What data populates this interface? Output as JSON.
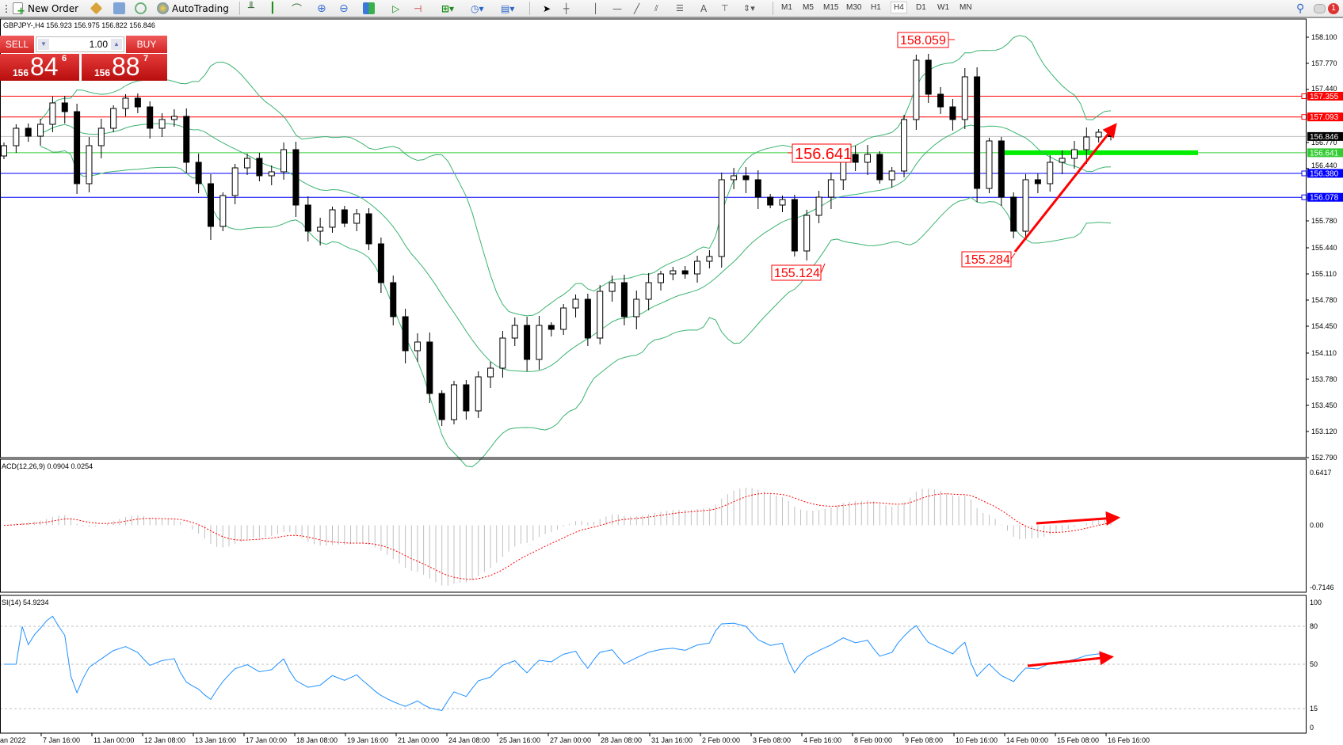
{
  "toolbar": {
    "new_order": "New Order",
    "autotrading": "AutoTrading",
    "icons": [
      "new-order-icon",
      "market-watch-icon",
      "navigator-icon",
      "signals-icon",
      "autotrading-icon",
      "bar-chart-icon",
      "candlestick-icon",
      "line-chart-icon",
      "zoom-in-icon",
      "zoom-out-icon",
      "tile-windows-icon",
      "auto-scroll-icon",
      "chart-shift-icon",
      "indicators-icon",
      "periods-icon",
      "templates-icon",
      "cursor-icon",
      "crosshair-icon",
      "vertical-line-icon",
      "horizontal-line-icon",
      "trendline-icon",
      "equidistant-channel-icon",
      "fibonacci-icon",
      "text-icon",
      "text-label-icon",
      "arrows-icon",
      "search-icon",
      "notifications-icon"
    ],
    "timeframes": [
      "M1",
      "M5",
      "M15",
      "M30",
      "H1",
      "H4",
      "D1",
      "W1",
      "MN"
    ],
    "active_timeframe": "H4",
    "notification_count": "1"
  },
  "chart": {
    "header": "GBPJPY-,H4  156.923 156.975 156.822 156.846"
  },
  "trade_panel": {
    "sell": "SELL",
    "buy": "BUY",
    "lot": "1.00",
    "sell_price": {
      "big": "156",
      "main": "84",
      "sup": "6"
    },
    "buy_price": {
      "big": "156",
      "main": "88",
      "sup": "7"
    }
  },
  "chart_data": {
    "type": "candlestick",
    "symbol": "GBPJPY-",
    "timeframe": "H4",
    "ohlc_last": [
      156.923,
      156.975,
      156.822,
      156.846
    ],
    "close": [
      156.73,
      156.95,
      156.85,
      157.0,
      157.27,
      157.16,
      156.25,
      156.73,
      156.95,
      157.2,
      157.33,
      157.22,
      156.95,
      157.06,
      157.1,
      156.52,
      156.25,
      155.71,
      156.1,
      156.45,
      156.57,
      156.35,
      156.4,
      156.68,
      155.98,
      155.65,
      155.7,
      155.92,
      155.75,
      155.87,
      155.49,
      155.0,
      154.57,
      154.14,
      154.25,
      153.6,
      153.27,
      153.71,
      153.38,
      153.81,
      153.92,
      154.3,
      154.46,
      154.03,
      154.46,
      154.41,
      154.68,
      154.79,
      154.3,
      154.89,
      155.0,
      154.57,
      154.79,
      155.0,
      155.11,
      155.15,
      155.11,
      155.27,
      155.33,
      156.3,
      156.35,
      156.3,
      156.08,
      155.98,
      156.05,
      155.4,
      155.85,
      156.08,
      156.3,
      156.62,
      156.52,
      156.62,
      156.3,
      156.41,
      157.06,
      157.81,
      157.38,
      157.22,
      157.06,
      157.6,
      156.19,
      156.79,
      156.08,
      155.65,
      156.3,
      156.25,
      156.52,
      156.57,
      156.68,
      156.84,
      156.9,
      156.846
    ],
    "price_ticks": [
      "158.100",
      "157.770",
      "157.440",
      "156.770",
      "156.440",
      "155.780",
      "155.440",
      "155.110",
      "154.780",
      "154.450",
      "154.110",
      "153.780",
      "153.450",
      "153.120",
      "152.790"
    ],
    "time_labels": [
      "an 2022",
      "7 Jan 16:00",
      "11 Jan 00:00",
      "12 Jan 08:00",
      "13 Jan 16:00",
      "17 Jan 00:00",
      "18 Jan 08:00",
      "19 Jan 16:00",
      "21 Jan 00:00",
      "24 Jan 08:00",
      "25 Jan 16:00",
      "27 Jan 00:00",
      "28 Jan 08:00",
      "31 Jan 16:00",
      "2 Feb 00:00",
      "3 Feb 08:00",
      "4 Feb 16:00",
      "8 Feb 00:00",
      "9 Feb 08:00",
      "10 Feb 16:00",
      "14 Feb 00:00",
      "15 Feb 08:00",
      "16 Feb 16:00"
    ],
    "levels": [
      {
        "price": "157.355",
        "color": "#ff0000"
      },
      {
        "price": "157.093",
        "color": "#ff0000"
      },
      {
        "price": "156.846",
        "color": "#000000",
        "line": "#c0c0c0"
      },
      {
        "price": "156.641",
        "color": "#33cc33"
      },
      {
        "price": "156.380",
        "color": "#0000ff"
      },
      {
        "price": "156.078",
        "color": "#0000ff"
      }
    ],
    "price_labels": [
      "158.059",
      "156.641",
      "155.124",
      "155.284"
    ],
    "bollinger_color": "#3cb371",
    "candle_up": "#ffffff",
    "candle_down": "#000000",
    "arrow_color": "#ff0000",
    "macd": {
      "label": "ACD(12,26,9) 0.0904 0.0254",
      "axis": [
        "0.6417",
        "0.00",
        "-0.7146"
      ],
      "histogram_color": "#c0c0c0",
      "signal_color": "#ff0000"
    },
    "rsi": {
      "label": "SI(14) 54.9234",
      "axis": [
        "100",
        "80",
        "50",
        "15",
        "0"
      ],
      "color": "#1e90ff"
    }
  }
}
